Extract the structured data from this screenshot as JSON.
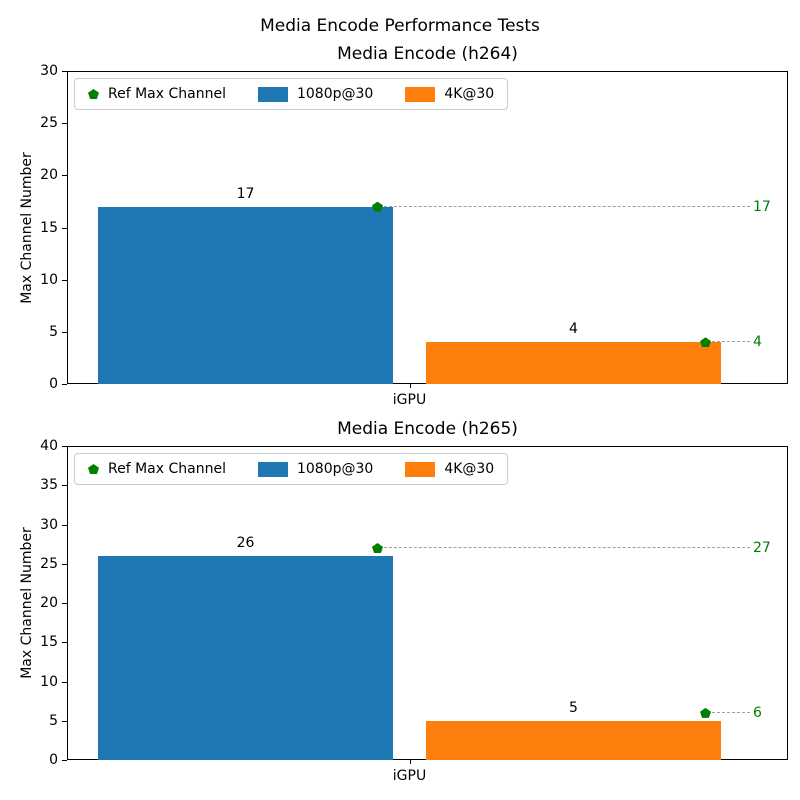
{
  "figure": {
    "suptitle": "Media Encode Performance Tests"
  },
  "colors": {
    "bar_blue": "#1f77b4",
    "bar_orange": "#ff7f0e",
    "ref_green": "#008000",
    "dash_line": "#a0a0a0",
    "axis": "#000000",
    "legend_border": "#cccccc"
  },
  "chart_data": [
    {
      "type": "bar",
      "title": "Media Encode (h264)",
      "categories": [
        "iGPU"
      ],
      "xlabel": "",
      "ylabel": "Max Channel Number",
      "ylim": [
        0,
        30
      ],
      "ytick_step": 5,
      "grid": false,
      "legend_position": "upper left",
      "series": [
        {
          "name": "1080p@30",
          "color": "#1f77b4",
          "values": [
            17
          ]
        },
        {
          "name": "4K@30",
          "color": "#ff7f0e",
          "values": [
            4
          ]
        }
      ],
      "ref_markers": {
        "name": "Ref Max Channel",
        "color": "#008000",
        "marker": "pentagon",
        "values": [
          17,
          4
        ]
      }
    },
    {
      "type": "bar",
      "title": "Media Encode (h265)",
      "categories": [
        "iGPU"
      ],
      "xlabel": "",
      "ylabel": "Max Channel Number",
      "ylim": [
        0,
        40
      ],
      "ytick_step": 5,
      "grid": false,
      "legend_position": "upper left",
      "series": [
        {
          "name": "1080p@30",
          "color": "#1f77b4",
          "values": [
            26
          ]
        },
        {
          "name": "4K@30",
          "color": "#ff7f0e",
          "values": [
            5
          ]
        }
      ],
      "ref_markers": {
        "name": "Ref Max Channel",
        "color": "#008000",
        "marker": "pentagon",
        "values": [
          27,
          6
        ]
      }
    }
  ]
}
